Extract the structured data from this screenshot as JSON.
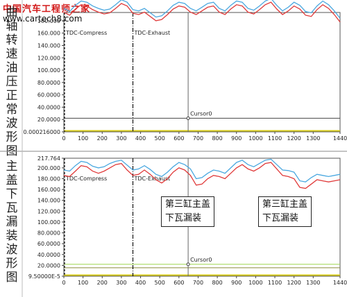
{
  "watermark": {
    "line1": "中国汽车工程师之家",
    "line2": "www.cartech8.com"
  },
  "side_labels": [
    "曲轴转速油压正常波形图",
    "主盖下瓦漏装波形图"
  ],
  "callouts": [
    "第三缸主盖\n下瓦漏装",
    "第三缸主盖\n下瓦漏装"
  ],
  "colors": {
    "red_series": "#e03a3a",
    "blue_series": "#4aa8e0",
    "green_line": "#9bd44a",
    "yellow_line": "#d8cc1a",
    "plot_border": "#555555"
  },
  "chart_data": [
    {
      "type": "line",
      "xlim": [
        0,
        1440
      ],
      "x_ticks": [
        0,
        100,
        200,
        300,
        400,
        500,
        600,
        700,
        800,
        900,
        1000,
        1100,
        1200,
        1300,
        1440
      ],
      "y_tick_labels": [
        "0.000216000",
        "20.0000",
        "40.0000",
        "60.0000",
        "80.0000",
        "100.000",
        "120.000",
        "140.000",
        "160.000",
        "180.000"
      ],
      "y_tick_values": [
        0.000216,
        20,
        40,
        60,
        80,
        100,
        120,
        140,
        160,
        180
      ],
      "ylim": [
        0.000216,
        217.764
      ],
      "markers": [
        {
          "label": "TDC-Compress",
          "x": 0,
          "style": "dashed"
        },
        {
          "label": "TDC-Exhaust",
          "x": 360,
          "style": "dashdot"
        },
        {
          "label": "Cursor0",
          "x": 648,
          "style": "solid"
        }
      ],
      "cursor_y": 22,
      "series": [
        {
          "color": "blue",
          "x": [
            0,
            30,
            60,
            90,
            120,
            150,
            180,
            210,
            240,
            270,
            300,
            330,
            360,
            390,
            420,
            450,
            480,
            510,
            540,
            570,
            600,
            630,
            660,
            690,
            720,
            750,
            780,
            810,
            840,
            870,
            900,
            930,
            960,
            990,
            1020,
            1050,
            1080,
            1110,
            1140,
            1170,
            1200,
            1230,
            1260,
            1290,
            1320,
            1350,
            1380,
            1410,
            1440
          ],
          "values": [
            200,
            195,
            205,
            212,
            210,
            204,
            200,
            197,
            199,
            206,
            214,
            210,
            198,
            196,
            200,
            193,
            186,
            188,
            196,
            205,
            210,
            208,
            200,
            196,
            202,
            208,
            210,
            200,
            196,
            205,
            212,
            210,
            200,
            197,
            204,
            212,
            216,
            205,
            196,
            202,
            210,
            205,
            195,
            193,
            204,
            212,
            206,
            196,
            184
          ]
        },
        {
          "color": "red",
          "x": [
            0,
            30,
            60,
            90,
            120,
            150,
            180,
            210,
            240,
            270,
            300,
            330,
            360,
            390,
            420,
            450,
            480,
            510,
            540,
            570,
            600,
            630,
            660,
            690,
            720,
            750,
            780,
            810,
            840,
            870,
            900,
            930,
            960,
            990,
            1020,
            1050,
            1080,
            1110,
            1140,
            1170,
            1200,
            1230,
            1260,
            1290,
            1320,
            1350,
            1380,
            1410,
            1440
          ],
          "values": [
            194,
            189,
            199,
            206,
            204,
            198,
            194,
            191,
            193,
            200,
            208,
            204,
            192,
            190,
            194,
            187,
            180,
            182,
            190,
            199,
            204,
            202,
            194,
            190,
            196,
            202,
            204,
            194,
            190,
            199,
            206,
            204,
            194,
            191,
            198,
            206,
            210,
            199,
            190,
            196,
            204,
            199,
            189,
            187,
            198,
            206,
            200,
            190,
            178
          ]
        }
      ]
    },
    {
      "type": "line",
      "xlim": [
        0,
        1440
      ],
      "x_ticks": [
        0,
        100,
        200,
        300,
        400,
        500,
        600,
        700,
        800,
        900,
        1000,
        1100,
        1200,
        1300,
        1440
      ],
      "y_tick_labels": [
        "9.50000E-5",
        "20.0000",
        "40.0000",
        "60.0000",
        "80.0000",
        "100.000",
        "120.000",
        "140.000",
        "160.000",
        "180.000",
        "200.000",
        "217.764"
      ],
      "y_tick_values": [
        9.5e-05,
        20,
        40,
        60,
        80,
        100,
        120,
        140,
        160,
        180,
        200,
        217.764
      ],
      "ylim": [
        9.5e-05,
        217.764
      ],
      "markers": [
        {
          "label": "TDC-Compress",
          "x": 0,
          "style": "dashed"
        },
        {
          "label": "TDC-Exhaust",
          "x": 360,
          "style": "dashdot"
        },
        {
          "label": "Cursor0",
          "x": 648,
          "style": "solid"
        }
      ],
      "cursor_y": 22,
      "series": [
        {
          "color": "blue",
          "x": [
            0,
            30,
            60,
            90,
            120,
            150,
            180,
            210,
            240,
            270,
            300,
            330,
            360,
            390,
            420,
            450,
            480,
            510,
            540,
            570,
            600,
            630,
            660,
            690,
            720,
            750,
            780,
            810,
            840,
            870,
            900,
            930,
            960,
            990,
            1020,
            1050,
            1080,
            1110,
            1140,
            1170,
            1200,
            1230,
            1260,
            1290,
            1320,
            1350,
            1380,
            1410,
            1440
          ],
          "values": [
            196,
            194,
            204,
            212,
            210,
            203,
            200,
            202,
            208,
            212,
            214,
            205,
            196,
            198,
            204,
            197,
            188,
            184,
            192,
            202,
            210,
            206,
            198,
            180,
            182,
            190,
            196,
            194,
            190,
            200,
            210,
            214,
            206,
            202,
            208,
            214,
            216,
            206,
            196,
            195,
            192,
            176,
            174,
            182,
            188,
            186,
            184,
            186,
            188
          ]
        },
        {
          "color": "red",
          "x": [
            0,
            30,
            60,
            90,
            120,
            150,
            180,
            210,
            240,
            270,
            300,
            330,
            360,
            390,
            420,
            450,
            480,
            510,
            540,
            570,
            600,
            630,
            660,
            690,
            720,
            750,
            780,
            810,
            840,
            870,
            900,
            930,
            960,
            990,
            1020,
            1050,
            1080,
            1110,
            1140,
            1170,
            1200,
            1230,
            1260,
            1290,
            1320,
            1350,
            1380,
            1410,
            1440
          ],
          "values": [
            186,
            184,
            194,
            204,
            202,
            194,
            190,
            194,
            200,
            206,
            208,
            196,
            186,
            188,
            196,
            188,
            178,
            172,
            180,
            192,
            200,
            196,
            186,
            168,
            170,
            180,
            186,
            184,
            180,
            190,
            200,
            206,
            198,
            194,
            200,
            208,
            210,
            198,
            186,
            184,
            180,
            164,
            162,
            170,
            178,
            176,
            174,
            176,
            178
          ]
        }
      ]
    }
  ]
}
